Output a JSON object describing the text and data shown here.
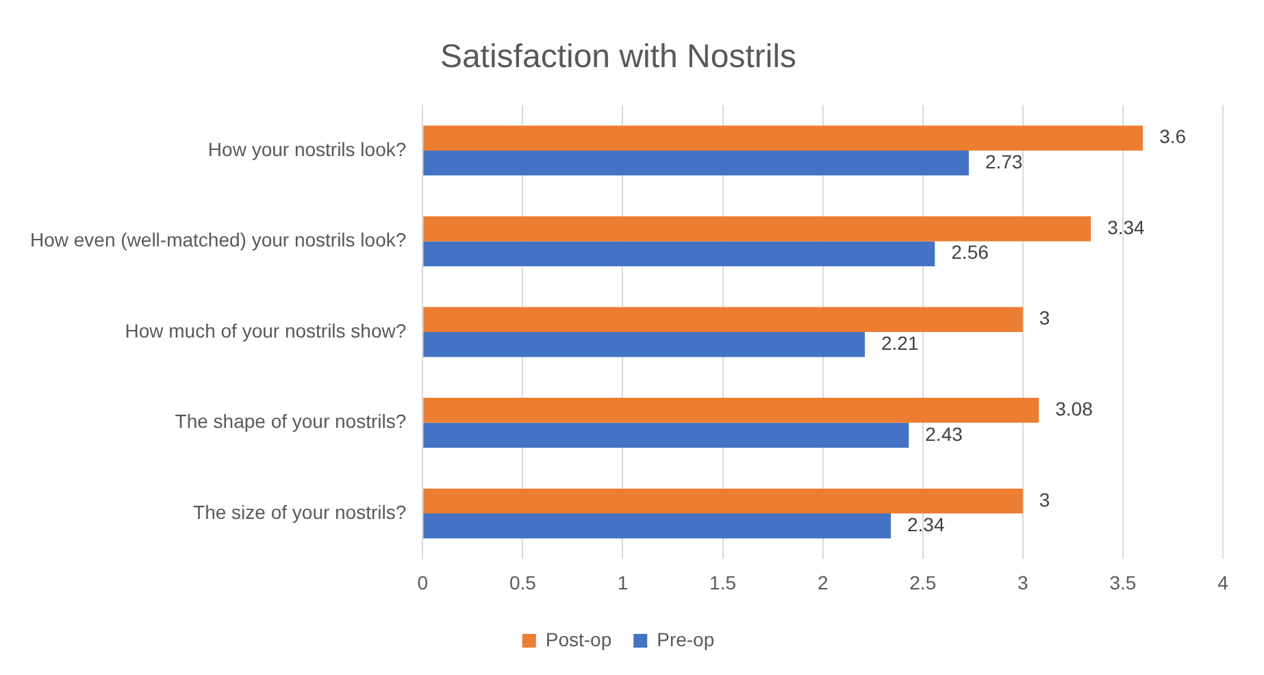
{
  "chart_data": {
    "type": "bar",
    "orientation": "horizontal",
    "title": "Satisfaction with Nostrils",
    "categories": [
      "How your nostrils look?",
      "How even (well-matched) your nostrils look?",
      "How much of your nostrils show?",
      "The shape of your nostrils?",
      "The size of your nostrils?"
    ],
    "series": [
      {
        "name": "Post-op",
        "color": "#ed7d31",
        "values": [
          3.6,
          3.34,
          3,
          3.08,
          3
        ]
      },
      {
        "name": "Pre-op",
        "color": "#4472c4",
        "values": [
          2.73,
          2.56,
          2.21,
          2.43,
          2.34
        ]
      }
    ],
    "xlim": [
      0,
      4
    ],
    "xticks": [
      0,
      0.5,
      1,
      1.5,
      2,
      2.5,
      3,
      3.5,
      4
    ],
    "grid": "x",
    "legend": "bottom",
    "data_labels": true
  }
}
